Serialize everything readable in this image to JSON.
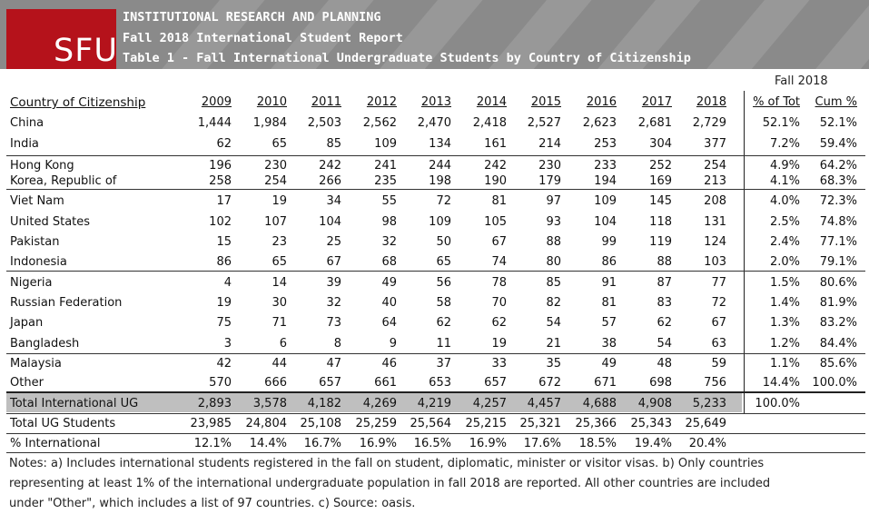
{
  "header": {
    "logo": "SFU",
    "line1": "INSTITUTIONAL RESEARCH AND PLANNING",
    "line2": "Fall 2018 International Student Report",
    "line3": "Table 1 - Fall International Undergraduate Students by Country of Citizenship"
  },
  "table": {
    "group_header": "Fall 2018",
    "columns": [
      "Country of Citizenship",
      "2009",
      "2010",
      "2011",
      "2012",
      "2013",
      "2014",
      "2015",
      "2016",
      "2017",
      "2018",
      "% of Tot",
      "Cum %"
    ],
    "rows": [
      [
        "China",
        "1,444",
        "1,984",
        "2,503",
        "2,562",
        "2,470",
        "2,418",
        "2,527",
        "2,623",
        "2,681",
        "2,729",
        "52.1%",
        "52.1%"
      ],
      [
        "India",
        "62",
        "65",
        "85",
        "109",
        "134",
        "161",
        "214",
        "253",
        "304",
        "377",
        "7.2%",
        "59.4%"
      ],
      [
        "Hong Kong",
        "196",
        "230",
        "242",
        "241",
        "244",
        "242",
        "230",
        "233",
        "252",
        "254",
        "4.9%",
        "64.2%"
      ],
      [
        "Korea, Republic of",
        "258",
        "254",
        "266",
        "235",
        "198",
        "190",
        "179",
        "194",
        "169",
        "213",
        "4.1%",
        "68.3%"
      ],
      [
        "Viet Nam",
        "17",
        "19",
        "34",
        "55",
        "72",
        "81",
        "97",
        "109",
        "145",
        "208",
        "4.0%",
        "72.3%"
      ],
      [
        "United States",
        "102",
        "107",
        "104",
        "98",
        "109",
        "105",
        "93",
        "104",
        "118",
        "131",
        "2.5%",
        "74.8%"
      ],
      [
        "Pakistan",
        "15",
        "23",
        "25",
        "32",
        "50",
        "67",
        "88",
        "99",
        "119",
        "124",
        "2.4%",
        "77.1%"
      ],
      [
        "Indonesia",
        "86",
        "65",
        "67",
        "68",
        "65",
        "74",
        "80",
        "86",
        "88",
        "103",
        "2.0%",
        "79.1%"
      ],
      [
        "Nigeria",
        "4",
        "14",
        "39",
        "49",
        "56",
        "78",
        "85",
        "91",
        "87",
        "77",
        "1.5%",
        "80.6%"
      ],
      [
        "Russian Federation",
        "19",
        "30",
        "32",
        "40",
        "58",
        "70",
        "82",
        "81",
        "83",
        "72",
        "1.4%",
        "81.9%"
      ],
      [
        "Japan",
        "75",
        "71",
        "73",
        "64",
        "62",
        "62",
        "54",
        "57",
        "62",
        "67",
        "1.3%",
        "83.2%"
      ],
      [
        "Bangladesh",
        "3",
        "6",
        "8",
        "9",
        "11",
        "19",
        "21",
        "38",
        "54",
        "63",
        "1.2%",
        "84.4%"
      ],
      [
        "Malaysia",
        "42",
        "44",
        "47",
        "46",
        "37",
        "33",
        "35",
        "49",
        "48",
        "59",
        "1.1%",
        "85.6%"
      ],
      [
        "Other",
        "570",
        "666",
        "657",
        "661",
        "653",
        "657",
        "672",
        "671",
        "698",
        "756",
        "14.4%",
        "100.0%"
      ],
      [
        "Total International UG",
        "2,893",
        "3,578",
        "4,182",
        "4,269",
        "4,219",
        "4,257",
        "4,457",
        "4,688",
        "4,908",
        "5,233",
        "100.0%",
        ""
      ],
      [
        "Total UG Students",
        "23,985",
        "24,804",
        "25,108",
        "25,259",
        "25,564",
        "25,215",
        "25,321",
        "25,366",
        "25,343",
        "25,649",
        "",
        ""
      ],
      [
        "% International",
        "12.1%",
        "14.4%",
        "16.7%",
        "16.9%",
        "16.5%",
        "16.9%",
        "17.6%",
        "18.5%",
        "19.4%",
        "20.4%",
        "",
        ""
      ]
    ]
  },
  "notes": {
    "line1": "Notes:  a) Includes international students registered in the fall on student, diplomatic, minister or visitor visas.  b) Only countries",
    "line2": "representing at least 1% of the international undergraduate population in fall 2018 are reported.  All other countries are included",
    "line3": "under \"Other\", which includes a list of 97 countries.  c) Source:  oasis."
  },
  "colors": {
    "banner": "#8a8a8a",
    "logo": "#b5121b",
    "total_row": "#bfbfbf"
  }
}
